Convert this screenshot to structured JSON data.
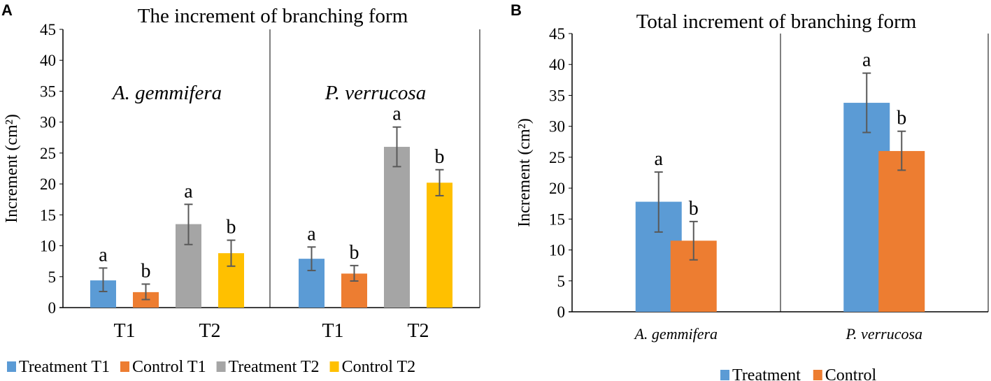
{
  "chart_data": [
    {
      "type": "bar",
      "panel_label": "A",
      "title": "The increment of branching form",
      "ylabel": "Increment (cm²)",
      "ylim": [
        0,
        45
      ],
      "yticks": [
        0,
        5,
        10,
        15,
        20,
        25,
        30,
        35,
        40,
        45
      ],
      "groups": [
        "A. gemmifera",
        "P. verrucosa"
      ],
      "categories": [
        "T1",
        "T2"
      ],
      "series": [
        {
          "name": "Treatment T1",
          "color": "#5B9BD5",
          "category": "T1",
          "values": [
            4.4,
            7.9
          ],
          "err_low": [
            2.6,
            6.0
          ],
          "err_high": [
            6.4,
            9.8
          ],
          "letters": [
            "a",
            "a"
          ]
        },
        {
          "name": "Control T1",
          "color": "#ED7D31",
          "category": "T1",
          "values": [
            2.5,
            5.5
          ],
          "err_low": [
            1.3,
            4.3
          ],
          "err_high": [
            3.8,
            6.8
          ],
          "letters": [
            "b",
            "b"
          ]
        },
        {
          "name": "Treatment T2",
          "color": "#A5A5A5",
          "category": "T2",
          "values": [
            13.5,
            26.0
          ],
          "err_low": [
            10.2,
            22.8
          ],
          "err_high": [
            16.7,
            29.2
          ],
          "letters": [
            "a",
            "a"
          ]
        },
        {
          "name": "Control T2",
          "color": "#FFC000",
          "category": "T2",
          "values": [
            8.8,
            20.2
          ],
          "err_low": [
            6.7,
            18.1
          ],
          "err_high": [
            10.9,
            22.3
          ],
          "letters": [
            "b",
            "b"
          ]
        }
      ],
      "legend": "bottom"
    },
    {
      "type": "bar",
      "panel_label": "B",
      "title": "Total increment of branching form",
      "ylabel": "Increment (cm²)",
      "ylim": [
        0,
        45
      ],
      "yticks": [
        0,
        5,
        10,
        15,
        20,
        25,
        30,
        35,
        40,
        45
      ],
      "groups": [
        "A. gemmifera",
        "P. verrucosa"
      ],
      "series": [
        {
          "name": "Treatment",
          "color": "#5B9BD5",
          "values": [
            17.8,
            33.8
          ],
          "err_low": [
            12.9,
            29.0
          ],
          "err_high": [
            22.6,
            38.6
          ],
          "letters": [
            "a",
            "a"
          ]
        },
        {
          "name": "Control",
          "color": "#ED7D31",
          "values": [
            11.5,
            26.0
          ],
          "err_low": [
            8.4,
            22.9
          ],
          "err_high": [
            14.6,
            29.2
          ],
          "letters": [
            "b",
            "b"
          ]
        }
      ],
      "legend": "bottom"
    }
  ]
}
